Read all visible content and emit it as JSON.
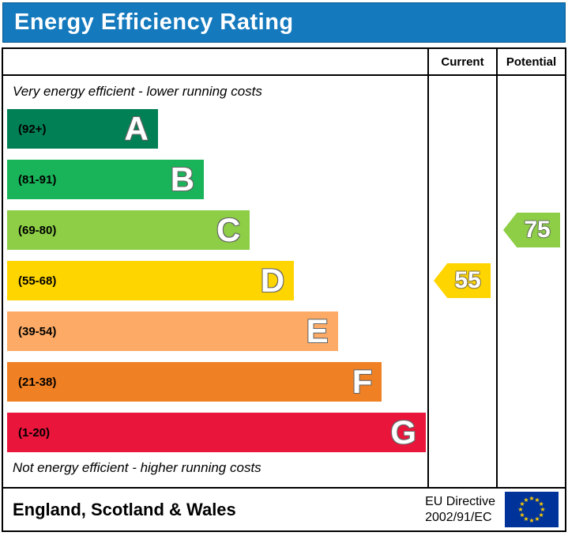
{
  "title": "Energy Efficiency Rating",
  "colors": {
    "title_bg": "#1479bd",
    "band_a": "#008054",
    "band_b": "#19b459",
    "band_c": "#8dce46",
    "band_d": "#ffd500",
    "band_e": "#fcaa65",
    "band_f": "#ef8023",
    "band_g": "#e9153b",
    "eu_flag_blue": "#003399",
    "eu_flag_star": "#ffcc00"
  },
  "columns": {
    "current": "Current",
    "potential": "Potential"
  },
  "top_label": "Very energy efficient - lower running costs",
  "bottom_label": "Not energy efficient - higher running costs",
  "bands": [
    {
      "letter": "A",
      "range": "(92+)",
      "color": "#008054",
      "width_pct": 36
    },
    {
      "letter": "B",
      "range": "(81-91)",
      "color": "#19b459",
      "width_pct": 47
    },
    {
      "letter": "C",
      "range": "(69-80)",
      "color": "#8dce46",
      "width_pct": 58
    },
    {
      "letter": "D",
      "range": "(55-68)",
      "color": "#ffd500",
      "width_pct": 68.5
    },
    {
      "letter": "E",
      "range": "(39-54)",
      "color": "#fcaa65",
      "width_pct": 79
    },
    {
      "letter": "F",
      "range": "(21-38)",
      "color": "#ef8023",
      "width_pct": 89.5
    },
    {
      "letter": "G",
      "range": "(1-20)",
      "color": "#e9153b",
      "width_pct": 100
    }
  ],
  "current": {
    "value": "55",
    "band": "D",
    "color": "#ffd500"
  },
  "potential": {
    "value": "75",
    "band": "C",
    "color": "#8dce46"
  },
  "footer": {
    "region": "England, Scotland & Wales",
    "directive_line1": "EU Directive",
    "directive_line2": "2002/91/EC"
  },
  "chart_data": {
    "type": "bar",
    "title": "Energy Efficiency Rating",
    "categories": [
      "A",
      "B",
      "C",
      "D",
      "E",
      "F",
      "G"
    ],
    "ranges": [
      "92+",
      "81-91",
      "69-80",
      "55-68",
      "39-54",
      "21-38",
      "1-20"
    ],
    "series": [
      {
        "name": "Current",
        "value": 55,
        "band": "D"
      },
      {
        "name": "Potential",
        "value": 75,
        "band": "C"
      }
    ],
    "annotations": [
      "Very energy efficient - lower running costs",
      "Not energy efficient - higher running costs"
    ],
    "legend_position": "none",
    "grid": false,
    "value_range": [
      1,
      100
    ]
  }
}
